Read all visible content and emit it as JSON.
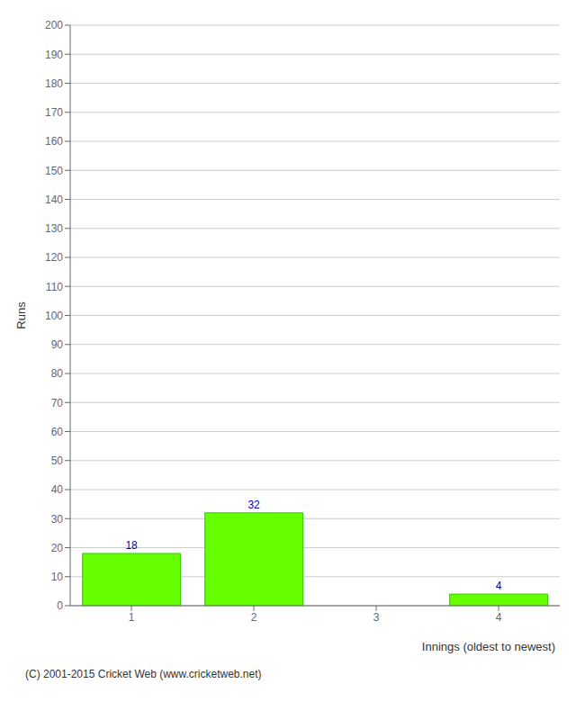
{
  "chart_data": {
    "type": "bar",
    "categories": [
      "1",
      "2",
      "3",
      "4"
    ],
    "values": [
      18,
      32,
      0,
      4
    ],
    "color": "#66ff00",
    "ylabel": "Runs",
    "xlabel": "Innings (oldest to newest)",
    "ylim": [
      0,
      200
    ],
    "yticks": [
      0,
      10,
      20,
      30,
      40,
      50,
      60,
      70,
      80,
      90,
      100,
      110,
      120,
      130,
      140,
      150,
      160,
      170,
      180,
      190,
      200
    ],
    "grid": true,
    "data_labels": true,
    "annotations": [
      "(C) 2001-2015 Cricket Web (www.cricketweb.net)"
    ]
  }
}
